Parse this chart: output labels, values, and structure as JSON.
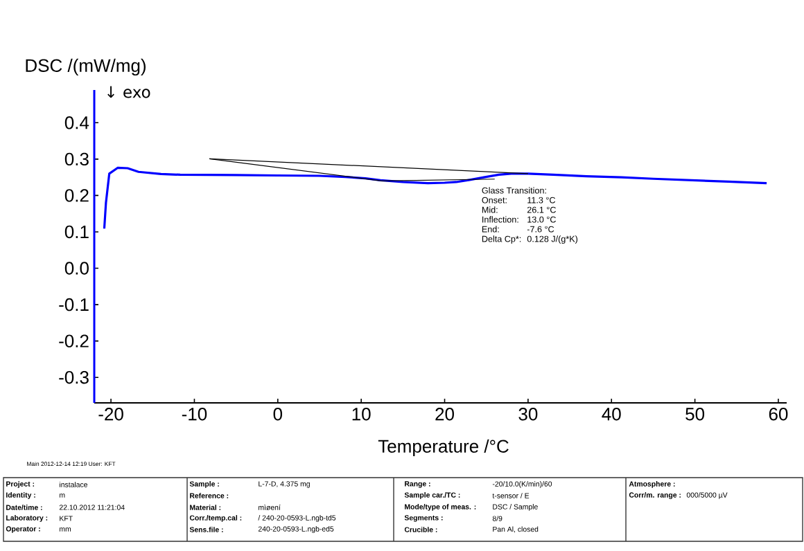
{
  "chart_data": {
    "type": "line",
    "xlabel": "Temperature /°C",
    "ylabel": "DSC /(mW/mg)",
    "xlim": [
      -22,
      61
    ],
    "ylim": [
      -0.37,
      0.49
    ],
    "xticks": [
      -20,
      -10,
      {
        "value": 0,
        "label": "0"
      },
      10,
      20,
      30,
      40,
      50,
      60
    ],
    "yticks": [
      -0.3,
      -0.2,
      -0.1,
      {
        "value": 0,
        "label": "0.0"
      },
      0.1,
      0.2,
      0.3,
      0.4
    ],
    "series": [
      {
        "color": "#0000ff",
        "x": [
          -20.8,
          -20.6,
          -20.2,
          -19.2,
          -18.0,
          -16.7,
          -14.0,
          -11.7,
          -5.0,
          0.0,
          5.0,
          8.1,
          10.5,
          12.3,
          15.0,
          18.0,
          20.0,
          21.4,
          23.0,
          24.7,
          26.5,
          28.0,
          30.0,
          33.0,
          37.0,
          41.2,
          45.0,
          49.5,
          54.0,
          58.6
        ],
        "values": [
          0.109,
          0.18,
          0.26,
          0.276,
          0.275,
          0.265,
          0.259,
          0.257,
          0.256,
          0.255,
          0.254,
          0.251,
          0.247,
          0.242,
          0.237,
          0.234,
          0.235,
          0.237,
          0.243,
          0.25,
          0.257,
          0.26,
          0.26,
          0.257,
          0.253,
          0.25,
          0.246,
          0.242,
          0.238,
          0.234
        ]
      },
      {
        "type": "line",
        "color": "#000000",
        "x": [
          -8.2,
          30.0
        ],
        "values": [
          0.301,
          0.26
        ]
      },
      {
        "type": "line",
        "color": "#000000",
        "x": [
          -8.2,
          12.5,
          26.0
        ],
        "values": [
          0.301,
          0.24,
          0.245
        ]
      }
    ],
    "annotations": [
      "↓  exo",
      "Glass Transition:",
      "Onset:",
      "11.3 °C",
      "Mid:",
      "26.1 °C",
      "Inflection:",
      "13.0 °C",
      "End:",
      "-7.6 °C",
      "Delta Cp*:",
      "0.128 J/(g*K)",
      "Main   2012-12-14 12:19   User: KFT",
      "Project :",
      "instalace",
      "Identity :",
      "m",
      "Date/time :",
      "22.10.2012 11:21:04",
      "Laboratory :",
      "KFT",
      "Operator :",
      "mm",
      "Sample :",
      "L-7-D, 4.375 mg",
      "Reference :",
      "Material :",
      "mìøení",
      "Corr./temp.cal :",
      "/ 240-20-0593-L.ngb-td5",
      "Sens.file :",
      "240-20-0593-L.ngb-ed5",
      "Range :",
      "-20/10.0(K/min)/60",
      "Sample car./TC :",
      "t-sensor / E",
      "Mode/type of meas. :",
      "DSC / Sample",
      "Segments :",
      "8/9",
      "Crucible :",
      "Pan Al, closed",
      "Atmosphere :",
      "Corr/m. range :",
      "000/5000 µV"
    ]
  }
}
